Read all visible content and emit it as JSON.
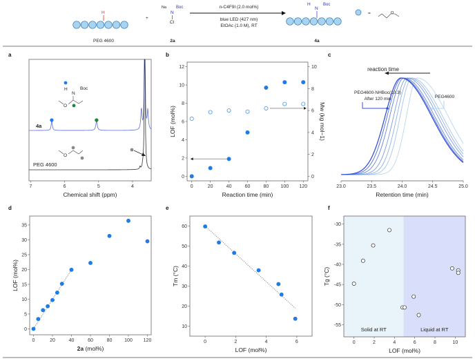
{
  "scheme": {
    "reactant1": "PEG 4600",
    "reactant2": "2a",
    "product": "4a",
    "plus": "+",
    "equals": "=",
    "na": "Na",
    "boc": "Boc",
    "n": "N",
    "cl": "Cl",
    "h": "H",
    "o": "O",
    "cond1": "n-C4F9I (2.0 mol%)",
    "cond2": "blue LED (427 nm)",
    "cond3": "EtOAc (1.0 M), RT",
    "colors": {
      "bead": "#a9d3ee",
      "bead_stroke": "#2a7bbd",
      "h_red": "#e0302a",
      "n_blue": "#2233cc"
    }
  },
  "chart_data": [
    {
      "panel": "a",
      "type": "line",
      "xlabel": "Chemical shift (ppm)",
      "xlim": [
        7.05,
        3.45
      ],
      "xticks": [
        "7",
        "6",
        "5",
        "4"
      ],
      "series": [
        {
          "name": "4a",
          "color": "#5a6fd6",
          "peaks_ppm": [
            6.38,
            5.06,
            3.74,
            3.64,
            3.55
          ]
        },
        {
          "name": "PEG 4600",
          "color": "#333333",
          "peaks_ppm": [
            3.78,
            3.7,
            3.64
          ]
        }
      ],
      "markers": {
        "blue": "#1f7be8",
        "green": "#1a8a3a",
        "gray": "#8a8a8a"
      },
      "struct_labels": {
        "h": "H",
        "n": "N",
        "boc": "Boc",
        "o": "O"
      }
    },
    {
      "panel": "b",
      "type": "scatter",
      "xlabel": "Reaction time (min)",
      "ylabel": "LOF (mol%)",
      "y2label": "Mw (kg mol−1)",
      "xlim": [
        -5,
        125
      ],
      "ylim": [
        -0.5,
        12.5
      ],
      "y2lim": [
        -0.4167,
        10.4167
      ],
      "xticks": [
        0,
        20,
        40,
        60,
        80,
        100,
        120
      ],
      "yticks": [
        0,
        2,
        4,
        6,
        8,
        10,
        12
      ],
      "y2ticks": [
        0,
        2,
        4,
        6,
        8,
        10
      ],
      "x": [
        0,
        20,
        40,
        60,
        80,
        100,
        120
      ],
      "series": [
        {
          "axis": "left",
          "style": "filled",
          "color": "#1f7be8",
          "values": [
            0,
            0.9,
            1.9,
            4.8,
            9.7,
            10.3,
            10.3
          ]
        },
        {
          "axis": "right",
          "style": "open",
          "color": "#4a90e2",
          "values": [
            5.25,
            5.85,
            6.0,
            5.9,
            6.2,
            6.6,
            6.6
          ]
        }
      ]
    },
    {
      "panel": "c",
      "type": "line",
      "xlabel": "Retention time (min)",
      "xlim": [
        23.0,
        25.0
      ],
      "xticks": [
        "23.0",
        "23.5",
        "24.0",
        "24.5",
        "25.0"
      ],
      "annotation_arrow": "reaction time",
      "label_product": "PEG4600-NHBoc(10.3)",
      "label_product_sub": "After 120 min",
      "label_start": "PEG4600",
      "series_peak_min": [
        24.25,
        24.16,
        24.12,
        24.08,
        24.03,
        24.0,
        23.98
      ],
      "series_colors": [
        "#b9d6ef",
        "#a4c4ee",
        "#8fb0ea",
        "#7a9be6",
        "#6384e2",
        "#4d6ede",
        "#3451d8"
      ]
    },
    {
      "panel": "d",
      "type": "scatter",
      "xlabel_bold": "2a",
      "xlabel": "(mol%)",
      "ylabel": "LOF (mol%)",
      "xlim": [
        -4,
        124
      ],
      "ylim": [
        -2,
        38
      ],
      "xticks": [
        0,
        20,
        40,
        60,
        80,
        100,
        120
      ],
      "yticks": [
        0,
        5,
        10,
        15,
        20,
        25,
        30,
        35
      ],
      "x": [
        0,
        5,
        10,
        15,
        20,
        25,
        30,
        40,
        60,
        80,
        100,
        120
      ],
      "values": [
        0,
        3.3,
        6.3,
        7.6,
        9.7,
        12.2,
        15.2,
        19.9,
        22.2,
        31.3,
        36.4,
        29.5
      ],
      "fit": {
        "x": [
          0,
          40
        ],
        "y": [
          0,
          19.9
        ]
      },
      "color": "#1f7be8"
    },
    {
      "panel": "e",
      "type": "scatter",
      "xlabel": "LOF (mol%)",
      "ylabel": "Tm (°C)",
      "xlim": [
        -1,
        7
      ],
      "ylim": [
        5,
        65
      ],
      "xticks": [
        0,
        2,
        4,
        6
      ],
      "yticks": [
        10,
        20,
        30,
        40,
        50,
        60
      ],
      "x": [
        0,
        0.9,
        1.9,
        3.5,
        4.8,
        5.0,
        5.9
      ],
      "values": [
        59.8,
        51.8,
        46.6,
        37.9,
        31.0,
        25.8,
        13.7
      ],
      "fit": {
        "x": [
          0,
          5.9
        ],
        "y": [
          60,
          19
        ]
      },
      "color": "#1f7be8"
    },
    {
      "panel": "f",
      "type": "scatter",
      "xlabel": "LOF (mol%)",
      "ylabel": "Tg (°C)",
      "xlim": [
        -1,
        11
      ],
      "ylim": [
        -58,
        -28
      ],
      "xticks": [
        0,
        2,
        4,
        6,
        8,
        10
      ],
      "yticks": [
        -30,
        -35,
        -40,
        -45,
        -50,
        -55
      ],
      "x": [
        0,
        0.9,
        1.9,
        3.5,
        4.8,
        5.0,
        5.9,
        6.4,
        9.7,
        10.3,
        10.3
      ],
      "values": [
        -44.8,
        -39.1,
        -35.3,
        -31.5,
        -50.7,
        -50.7,
        -48.0,
        -52.6,
        -41.0,
        -41.5,
        -42.1
      ],
      "regions": [
        {
          "label": "Solid at RT",
          "from": -1,
          "to": 4.9,
          "color": "#e8f3fa"
        },
        {
          "label": "Liquid at RT",
          "from": 4.9,
          "to": 11,
          "color": "#d9defa"
        }
      ]
    }
  ]
}
